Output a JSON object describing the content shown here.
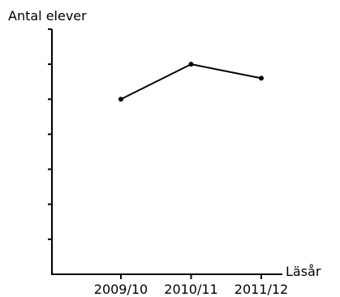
{
  "chart_data": {
    "type": "line",
    "categories": [
      "2009/10",
      "2010/11",
      "2011/12"
    ],
    "series": [
      {
        "values": [
          5,
          6,
          5.6
        ]
      }
    ],
    "title": "",
    "ylabel": "Antal elever",
    "xlabel": "Läsår",
    "ylim": [
      0,
      7
    ],
    "y_ticks": [
      1,
      2,
      3,
      4,
      5,
      6,
      7
    ],
    "y_tick_labels_shown": false,
    "grid": false,
    "legend": "none",
    "colors": {
      "line": "#000000",
      "axis": "#000000",
      "marker": "#000000"
    }
  }
}
